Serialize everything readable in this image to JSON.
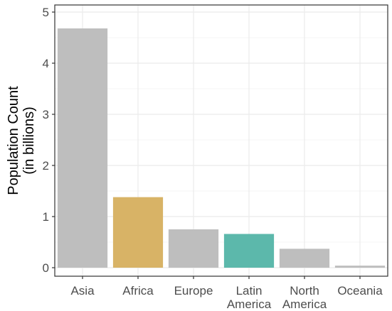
{
  "chart_data": {
    "type": "bar",
    "title": "",
    "xlabel": "",
    "ylabel_lines": [
      "Population Count",
      "(in billions)"
    ],
    "categories": [
      {
        "lines": [
          "Asia"
        ]
      },
      {
        "lines": [
          "Africa"
        ]
      },
      {
        "lines": [
          "Europe"
        ]
      },
      {
        "lines": [
          "Latin",
          "America"
        ]
      },
      {
        "lines": [
          "North",
          "America"
        ]
      },
      {
        "lines": [
          "Oceania"
        ]
      }
    ],
    "values": [
      4.68,
      1.38,
      0.75,
      0.66,
      0.37,
      0.04
    ],
    "bar_colors": [
      "#bebebe",
      "#d8b366",
      "#bebebe",
      "#5cb8ab",
      "#bebebe",
      "#bebebe"
    ],
    "ylim": [
      0,
      5
    ],
    "yticks": [
      0,
      1,
      2,
      3,
      4,
      5
    ],
    "grid": true,
    "legend": "none"
  },
  "colors": {
    "grid_major": "#ebebeb",
    "grid_minor": "#f5f5f5",
    "panel_border": "#333333",
    "axis_text": "#4d4d4d"
  }
}
